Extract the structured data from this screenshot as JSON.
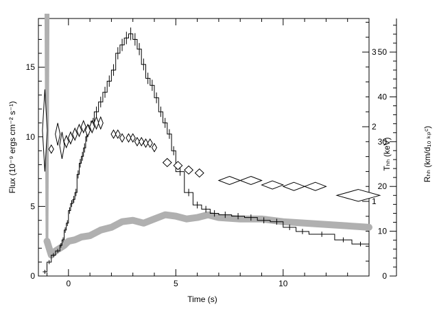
{
  "chart_data": {
    "type": "line",
    "xlabel": "Time (s)",
    "ylabel_left": "Flux (10⁻⁹ ergs cm⁻² s⁻¹)",
    "ylabel_right1": "Tₕₕ (keV)",
    "ylabel_right2": "Rₕₕ (km/d₁₀ ₖₚᶜ)",
    "xlim": [
      -1.4,
      14
    ],
    "ylim_left": [
      0,
      18.5
    ],
    "ylim_right1": [
      0.0,
      3.45
    ],
    "ylim_right2": [
      0,
      57.5
    ],
    "x_ticks": [
      0,
      5,
      10
    ],
    "y_left_ticks": [
      0,
      5,
      10,
      15
    ],
    "y_right1_ticks": [
      1,
      2,
      3
    ],
    "y_right2_ticks": [
      0,
      10,
      20,
      30,
      40,
      50
    ],
    "series": [
      {
        "style": "step",
        "x": [
          -1.2,
          -1.0,
          -0.8,
          -0.6,
          -0.4,
          -0.3,
          -0.2,
          -0.1,
          0.0,
          0.1,
          0.2,
          0.3,
          0.4,
          0.5,
          0.6,
          0.7,
          0.8,
          0.9,
          1.0,
          1.1,
          1.2,
          1.4,
          1.6,
          1.8,
          2.0,
          2.2,
          2.4,
          2.6,
          2.8,
          3.0,
          3.2,
          3.4,
          3.6,
          3.8,
          4.0,
          4.2,
          4.4,
          4.6,
          4.8,
          5.0,
          5.4,
          5.8,
          6.2,
          6.6,
          7.0,
          7.6,
          8.2,
          8.8,
          9.4,
          10.0,
          10.6,
          11.2,
          12.4,
          13.2,
          14.0
        ],
        "values": [
          0.3,
          1.0,
          1.5,
          1.8,
          2.2,
          2.6,
          3.3,
          3.8,
          4.7,
          5.2,
          5.5,
          6.0,
          7.3,
          8.1,
          8.6,
          9.2,
          10.0,
          10.5,
          10.8,
          11.0,
          11.8,
          12.5,
          13.2,
          14.0,
          14.8,
          16.0,
          16.6,
          17.1,
          17.4,
          17.0,
          16.3,
          15.2,
          14.2,
          13.7,
          12.8,
          11.8,
          11.0,
          10.2,
          9.0,
          7.5,
          6.0,
          5.1,
          4.8,
          4.5,
          4.4,
          4.3,
          4.2,
          4.0,
          3.9,
          3.5,
          3.2,
          3.0,
          2.6,
          2.3,
          2.3
        ]
      },
      {
        "style": "band",
        "x": [
          -1.0,
          -0.8,
          -0.6,
          -0.4,
          -0.2,
          0.0,
          0.3,
          0.6,
          1.0,
          1.5,
          2.0,
          2.5,
          3.0,
          3.5,
          4.0,
          4.5,
          5.0,
          5.5,
          6.0,
          6.5,
          7.0,
          8.0,
          9.0,
          10.0,
          11.0,
          12.0,
          13.0,
          14.0
        ],
        "values": [
          2.5,
          1.5,
          1.8,
          2.0,
          2.2,
          2.5,
          2.6,
          2.8,
          2.9,
          3.3,
          3.5,
          3.9,
          4.0,
          3.8,
          4.1,
          4.4,
          4.3,
          4.1,
          4.2,
          4.4,
          4.2,
          4.1,
          4.1,
          3.9,
          3.8,
          3.7,
          3.6,
          3.5
        ]
      },
      {
        "style": "diamond",
        "axis": "right1",
        "x": [
          -1.1,
          -0.8,
          -0.5,
          -0.3,
          -0.1,
          0.1,
          0.3,
          0.5,
          0.7,
          0.9,
          1.1,
          1.3,
          1.5,
          2.1,
          2.3,
          2.5,
          2.8,
          3.0,
          3.2,
          3.4,
          3.6,
          3.8,
          4.0,
          4.6,
          5.1,
          5.6,
          6.1,
          7.5,
          8.5,
          9.5,
          10.5,
          11.5,
          13.5
        ],
        "values": [
          1.95,
          1.7,
          1.9,
          1.75,
          1.8,
          1.85,
          1.9,
          1.95,
          2.0,
          1.95,
          2.0,
          2.05,
          2.05,
          1.9,
          1.9,
          1.85,
          1.85,
          1.85,
          1.8,
          1.8,
          1.78,
          1.78,
          1.72,
          1.52,
          1.48,
          1.42,
          1.38,
          1.28,
          1.28,
          1.22,
          1.2,
          1.2,
          1.08
        ],
        "errors": [
          0.55,
          0.05,
          0.15,
          0.18,
          0.08,
          0.08,
          0.08,
          0.08,
          0.08,
          0.08,
          0.08,
          0.08,
          0.08,
          0.04,
          0.04,
          0.04,
          0.04,
          0.04,
          0.04,
          0.04,
          0.04,
          0.04,
          0.04,
          0.04,
          0.04,
          0.04,
          0.04,
          0.04,
          0.04,
          0.04,
          0.04,
          0.04,
          0.08
        ],
        "xerrors": [
          0.1,
          0.1,
          0.1,
          0.1,
          0.1,
          0.1,
          0.1,
          0.1,
          0.1,
          0.1,
          0.1,
          0.1,
          0.1,
          0.1,
          0.1,
          0.1,
          0.1,
          0.1,
          0.1,
          0.1,
          0.1,
          0.1,
          0.1,
          0.2,
          0.2,
          0.2,
          0.2,
          0.5,
          0.5,
          0.5,
          0.5,
          0.5,
          1.0
        ]
      }
    ],
    "grid": false
  }
}
